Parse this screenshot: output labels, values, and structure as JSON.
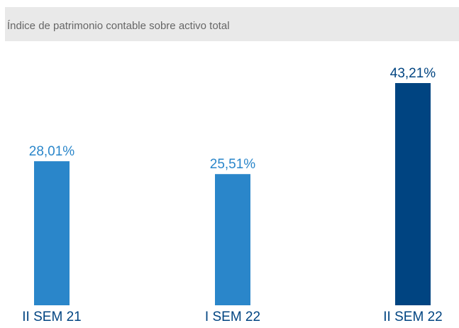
{
  "chart_data": {
    "type": "bar",
    "title": "Índice de patrimonio contable sobre activo total",
    "categories": [
      "II SEM 21",
      "I SEM 22",
      "II SEM 22"
    ],
    "values": [
      28.01,
      25.51,
      43.21
    ],
    "value_labels": [
      "28,01%",
      "25,51%",
      "43,21%"
    ],
    "colors": [
      "#2a86ca",
      "#2a86ca",
      "#004481"
    ]
  }
}
